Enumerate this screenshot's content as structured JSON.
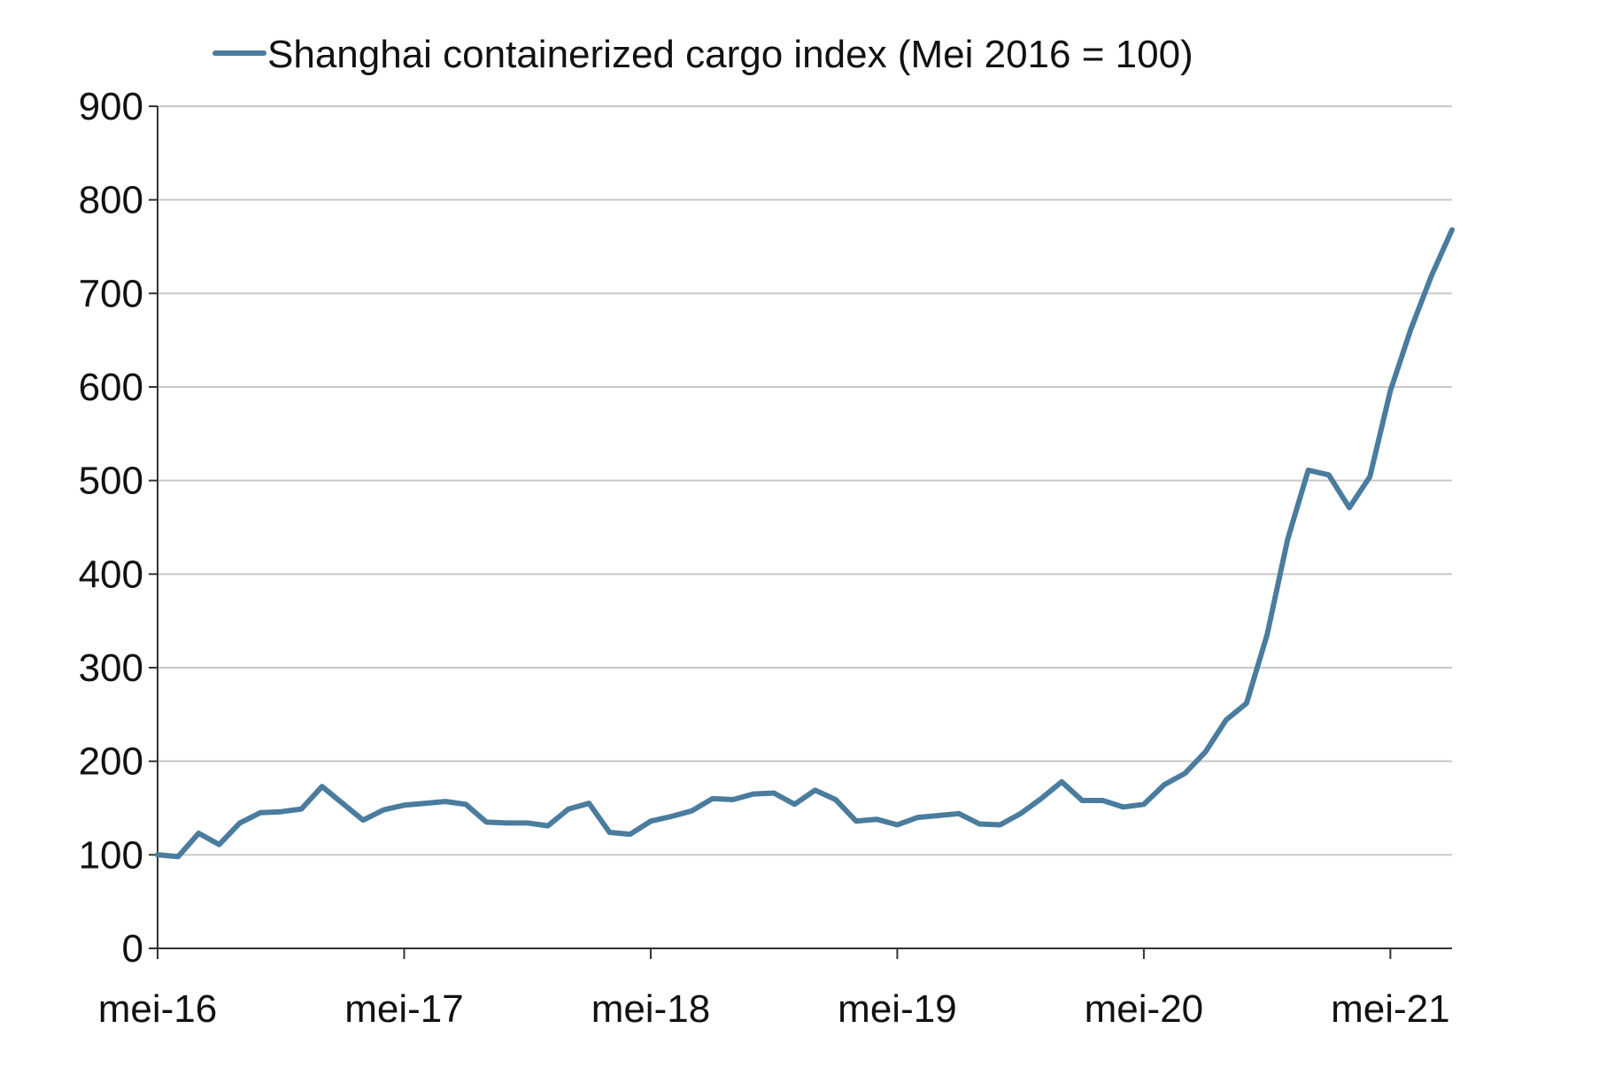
{
  "chart_data": {
    "type": "line",
    "title": "",
    "xlabel": "",
    "ylabel": "",
    "ylim": [
      0,
      900
    ],
    "yticks": [
      0,
      100,
      200,
      300,
      400,
      500,
      600,
      700,
      800,
      900
    ],
    "x_start": "2016-05",
    "x_end": "2021-08",
    "xticks": [
      {
        "date": "2016-05",
        "label": "mei-16"
      },
      {
        "date": "2017-05",
        "label": "mei-17"
      },
      {
        "date": "2018-05",
        "label": "mei-18"
      },
      {
        "date": "2019-05",
        "label": "mei-19"
      },
      {
        "date": "2020-05",
        "label": "mei-20"
      },
      {
        "date": "2021-05",
        "label": "mei-21"
      }
    ],
    "grid": "horizontal",
    "legend_position": "top",
    "series": [
      {
        "name": "Shanghai containerized cargo index (Mei 2016 = 100)",
        "color": "#4A7C9E",
        "x": [
          "2016-05",
          "2016-06",
          "2016-07",
          "2016-08",
          "2016-09",
          "2016-10",
          "2016-11",
          "2016-12",
          "2017-01",
          "2017-02",
          "2017-03",
          "2017-04",
          "2017-05",
          "2017-06",
          "2017-07",
          "2017-08",
          "2017-09",
          "2017-10",
          "2017-11",
          "2017-12",
          "2018-01",
          "2018-02",
          "2018-03",
          "2018-04",
          "2018-05",
          "2018-06",
          "2018-07",
          "2018-08",
          "2018-09",
          "2018-10",
          "2018-11",
          "2018-12",
          "2019-01",
          "2019-02",
          "2019-03",
          "2019-04",
          "2019-05",
          "2019-06",
          "2019-07",
          "2019-08",
          "2019-09",
          "2019-10",
          "2019-11",
          "2019-12",
          "2020-01",
          "2020-02",
          "2020-03",
          "2020-04",
          "2020-05",
          "2020-06",
          "2020-07",
          "2020-08",
          "2020-09",
          "2020-10",
          "2020-11",
          "2020-12",
          "2021-01",
          "2021-02",
          "2021-03",
          "2021-04",
          "2021-05",
          "2021-06",
          "2021-07",
          "2021-08"
        ],
        "values": [
          100,
          98,
          123,
          111,
          134,
          145,
          146,
          149,
          173,
          155,
          137,
          148,
          153,
          155,
          157,
          154,
          135,
          134,
          134,
          131,
          149,
          155,
          124,
          122,
          136,
          141,
          147,
          160,
          159,
          165,
          166,
          154,
          169,
          159,
          136,
          138,
          132,
          140,
          142,
          144,
          133,
          132,
          144,
          160,
          178,
          158,
          158,
          151,
          154,
          175,
          187,
          210,
          244,
          262,
          335,
          437,
          511,
          506,
          471,
          504,
          596,
          662,
          719,
          768
        ]
      }
    ]
  }
}
